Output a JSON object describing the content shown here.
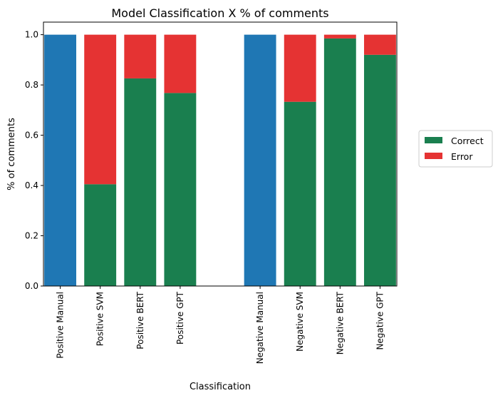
{
  "chart_data": {
    "type": "bar",
    "stacked": true,
    "title": "Model Classification X % of comments",
    "xlabel": "Classification",
    "ylabel": "% of comments",
    "ylim": [
      0,
      1.05
    ],
    "yticks": [
      0.0,
      0.2,
      0.4,
      0.6,
      0.8,
      1.0
    ],
    "ytick_labels": [
      "0.0",
      "0.2",
      "0.4",
      "0.6",
      "0.8",
      "1.0"
    ],
    "categories": [
      "Positive Manual",
      "Positive SVM",
      "Positive BERT",
      "Positive GPT",
      "",
      "Negative Manual",
      "Negative SVM",
      "Negative BERT",
      "Negative GPT"
    ],
    "manual": {
      "color": "#1f77b4",
      "values": [
        1.0,
        null,
        null,
        null,
        null,
        1.0,
        null,
        null,
        null
      ]
    },
    "series": [
      {
        "name": "Correct",
        "color": "#1a7f4f",
        "values": [
          null,
          0.405,
          0.826,
          0.768,
          null,
          null,
          0.733,
          0.985,
          0.92
        ]
      },
      {
        "name": "Error",
        "color": "#e53333",
        "values": [
          null,
          0.595,
          0.174,
          0.232,
          null,
          null,
          0.267,
          0.015,
          0.08
        ]
      }
    ],
    "legend": {
      "placement": "right",
      "entries": [
        "Correct",
        "Error"
      ]
    },
    "grid": false
  }
}
